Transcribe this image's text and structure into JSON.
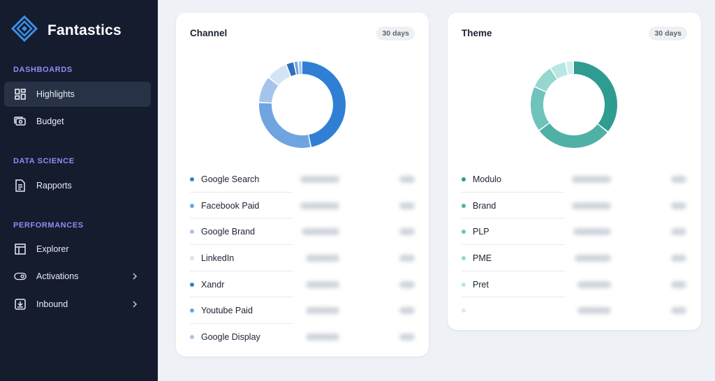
{
  "app": {
    "name": "Fantastics",
    "logo_icon": "diamond-logo-icon"
  },
  "sidebar": {
    "sections": [
      {
        "title": "DASHBOARDS"
      },
      {
        "title": "DATA SCIENCE"
      },
      {
        "title": "PERFORMANCES"
      }
    ],
    "items": [
      {
        "label": "Highlights",
        "icon": "dashboard-grid-icon",
        "active": true
      },
      {
        "label": "Budget",
        "icon": "money-icon"
      },
      {
        "label": "Rapports",
        "icon": "report-document-icon"
      },
      {
        "label": "Explorer",
        "icon": "table-icon"
      },
      {
        "label": "Activations",
        "icon": "toggle-icon",
        "has_chevron": true
      },
      {
        "label": "Inbound",
        "icon": "inbox-icon",
        "has_chevron": true
      }
    ]
  },
  "cards": {
    "channel": {
      "title": "Channel",
      "period": "30 days",
      "legend": [
        {
          "label": "Google Search",
          "color": "#2f80d4"
        },
        {
          "label": "Facebook Paid",
          "color": "#6fa4e0"
        },
        {
          "label": "Google Brand",
          "color": "#a4c4ec"
        },
        {
          "label": "LinkedIn",
          "color": "#d3e4f7"
        },
        {
          "label": "Xandr",
          "color": "#2f80d4"
        },
        {
          "label": "Youtube Paid",
          "color": "#6fa4e0"
        },
        {
          "label": "Google Display",
          "color": "#a4c4ec"
        }
      ],
      "donut_shares": [
        0.47,
        0.29,
        0.1,
        0.08,
        0.03,
        0.015,
        0.015
      ]
    },
    "theme": {
      "title": "Theme",
      "period": "30 days",
      "legend": [
        {
          "label": "Modulo",
          "color": "#2e9c91"
        },
        {
          "label": "Brand",
          "color": "#4fb0a6"
        },
        {
          "label": "PLP",
          "color": "#6ec3ba"
        },
        {
          "label": "PME",
          "color": "#95d6cf"
        },
        {
          "label": "Pret",
          "color": "#b8e6e1"
        },
        {
          "label": "",
          "color": "#d0f0ed"
        }
      ],
      "donut_shares": [
        0.36,
        0.29,
        0.17,
        0.09,
        0.06,
        0.03
      ]
    }
  }
}
